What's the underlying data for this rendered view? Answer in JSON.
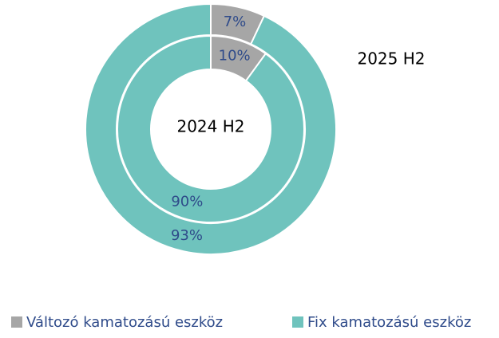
{
  "chart_data": {
    "type": "donut",
    "categories": [
      "Változó kamatozású eszköz",
      "Fix kamatozású eszköz"
    ],
    "colors": [
      "#a6a6a6",
      "#6fc3bd"
    ],
    "rings": [
      {
        "name": "2025 H2",
        "values": [
          7,
          93
        ],
        "value_labels": [
          "7%",
          "93%"
        ]
      },
      {
        "name": "2024 H2",
        "values": [
          10,
          90
        ],
        "value_labels": [
          "10%",
          "90%"
        ]
      }
    ],
    "legend": "bottom"
  }
}
